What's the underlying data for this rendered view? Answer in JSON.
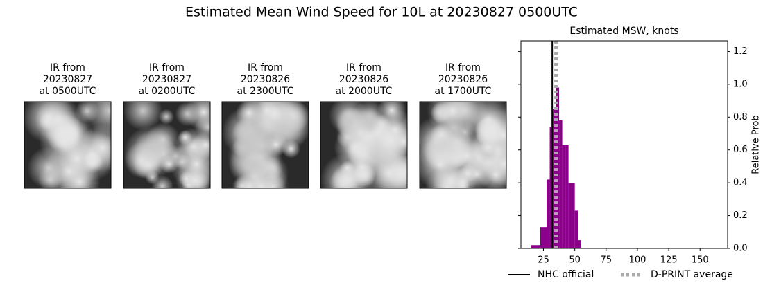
{
  "chart_data": {
    "type": "histogram",
    "title": "Estimated Mean Wind Speed for 10L at 20230827 0500UTC",
    "panels": [
      {
        "lines": [
          "IR from",
          "20230827",
          "at 0500UTC"
        ]
      },
      {
        "lines": [
          "IR from",
          "20230827",
          "at 0200UTC"
        ]
      },
      {
        "lines": [
          "IR from",
          "20230826",
          "at 2300UTC"
        ]
      },
      {
        "lines": [
          "IR from",
          "20230826",
          "at 2000UTC"
        ]
      },
      {
        "lines": [
          "IR from",
          "20230826",
          "at 1700UTC"
        ]
      }
    ],
    "subtitle": "Estimated MSW, knots",
    "y_label": "Relative Prob",
    "bins": [
      15,
      17.5,
      20,
      22.5,
      25,
      27.5,
      30,
      32.5,
      35,
      37.5,
      40,
      42.5,
      45,
      47.5,
      50,
      52.5,
      55
    ],
    "values": [
      0.02,
      0.02,
      0.02,
      0.13,
      0.13,
      0.42,
      0.74,
      0.85,
      0.98,
      0.78,
      0.63,
      0.63,
      0.4,
      0.4,
      0.23,
      0.05
    ],
    "color": "#8b008b",
    "reference_lines": [
      {
        "name": "NHC official",
        "value": 32,
        "color": "#000000",
        "style": "solid"
      },
      {
        "name": "D-PRINT average",
        "value": 35,
        "color": "#aaaaaa",
        "style": "dotted"
      }
    ],
    "xlim": [
      7,
      172
    ],
    "xticks": [
      25,
      50,
      75,
      100,
      125,
      150
    ],
    "ylim": [
      0,
      1.265
    ],
    "yticks": [
      {
        "value": 0,
        "label": "0.0"
      },
      {
        "value": 0.2,
        "label": "0.2"
      },
      {
        "value": 0.4,
        "label": "0.4"
      },
      {
        "value": 0.6,
        "label": "0.6"
      },
      {
        "value": 0.8,
        "label": "0.8"
      },
      {
        "value": 1.0,
        "label": "1.0"
      },
      {
        "value": 1.2,
        "label": "1.2"
      }
    ]
  }
}
